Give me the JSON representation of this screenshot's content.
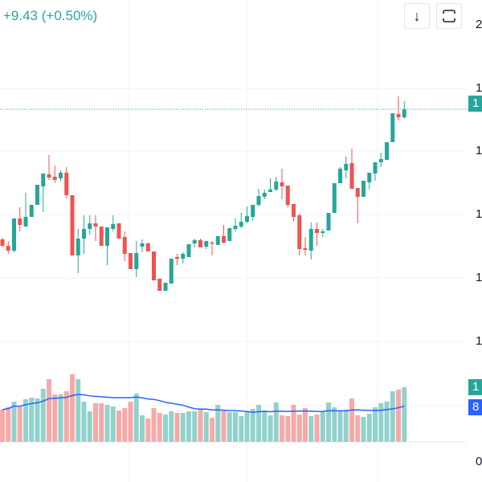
{
  "header": {
    "change_text": "+9.43 (+0.50%)"
  },
  "toolbar": {
    "download_icon": "arrow-down-icon",
    "fullscreen_icon": "fullscreen-icon"
  },
  "price_axis": {
    "labels": [
      "2",
      "1",
      "1",
      "1",
      "1",
      "1"
    ],
    "current_price_tag": "1"
  },
  "volume_axis": {
    "volume_tag": "1",
    "ma_tag": "8"
  },
  "time_axis": {
    "labels": [
      "0"
    ]
  },
  "colors": {
    "up": "#26a69a",
    "down": "#ef5350",
    "up_volume": "#92d2cc",
    "down_volume": "#f7a9a7",
    "ma": "#2962ff",
    "grid": "#f0f3fa"
  },
  "chart_data": {
    "type": "candlestick",
    "ohlc_format": [
      "open",
      "high",
      "low",
      "close"
    ],
    "candles": [
      [
        302,
        304,
        292,
        294
      ],
      [
        294,
        300,
        284,
        288
      ],
      [
        288,
        328,
        286,
        328
      ],
      [
        328,
        342,
        312,
        320
      ],
      [
        318,
        360,
        318,
        330
      ],
      [
        330,
        345,
        330,
        345
      ],
      [
        345,
        370,
        345,
        370
      ],
      [
        368,
        384,
        336,
        384
      ],
      [
        383,
        407,
        376,
        379
      ],
      [
        380,
        394,
        372,
        376
      ],
      [
        378,
        388,
        375,
        385
      ],
      [
        385,
        392,
        353,
        357
      ],
      [
        357,
        357,
        282,
        282
      ],
      [
        282,
        315,
        260,
        303
      ],
      [
        303,
        332,
        284,
        315
      ],
      [
        315,
        332,
        308,
        322
      ],
      [
        322,
        332,
        300,
        318
      ],
      [
        318,
        318,
        294,
        294
      ],
      [
        294,
        317,
        270,
        317
      ],
      [
        315,
        332,
        312,
        321
      ],
      [
        322,
        322,
        303,
        303
      ],
      [
        305,
        312,
        275,
        284
      ],
      [
        285,
        285,
        265,
        265
      ],
      [
        265,
        300,
        255,
        285
      ],
      [
        293,
        302,
        286,
        297
      ],
      [
        297,
        298,
        287,
        287
      ],
      [
        287,
        287,
        251,
        251
      ],
      [
        253,
        253,
        238,
        238
      ],
      [
        238,
        248,
        238,
        248
      ],
      [
        247,
        278,
        247,
        278
      ],
      [
        280,
        284,
        270,
        278
      ],
      [
        278,
        286,
        272,
        284
      ],
      [
        280,
        296,
        280,
        296
      ],
      [
        297,
        303,
        292,
        301
      ],
      [
        301,
        303,
        292,
        292
      ],
      [
        293,
        300,
        290,
        300
      ],
      [
        298,
        300,
        282,
        297
      ],
      [
        295,
        306,
        295,
        306
      ],
      [
        306,
        320,
        297,
        298
      ],
      [
        300,
        316,
        300,
        316
      ],
      [
        315,
        328,
        312,
        319
      ],
      [
        318,
        335,
        316,
        324
      ],
      [
        324,
        343,
        322,
        331
      ],
      [
        330,
        345,
        325,
        345
      ],
      [
        345,
        365,
        343,
        356
      ],
      [
        355,
        364,
        352,
        360
      ],
      [
        361,
        378,
        361,
        364
      ],
      [
        364,
        380,
        362,
        374
      ],
      [
        373,
        390,
        352,
        368
      ],
      [
        369,
        369,
        342,
        345
      ],
      [
        346,
        346,
        325,
        330
      ],
      [
        332,
        334,
        282,
        290
      ],
      [
        291,
        305,
        282,
        289
      ],
      [
        288,
        323,
        277,
        315
      ],
      [
        315,
        323,
        294,
        310
      ],
      [
        310,
        315,
        305,
        312
      ],
      [
        313,
        335,
        313,
        335
      ],
      [
        335,
        372,
        335,
        372
      ],
      [
        372,
        392,
        372,
        390
      ],
      [
        388,
        405,
        378,
        396
      ],
      [
        397,
        415,
        365,
        365
      ],
      [
        366,
        366,
        322,
        355
      ],
      [
        355,
        375,
        355,
        375
      ],
      [
        373,
        385,
        364,
        385
      ],
      [
        384,
        398,
        375,
        398
      ],
      [
        398,
        410,
        392,
        402
      ],
      [
        401,
        423,
        401,
        423
      ],
      [
        423,
        459,
        423,
        459
      ],
      [
        458,
        480,
        450,
        454
      ],
      [
        454,
        474,
        452,
        464
      ]
    ],
    "volumes": [
      40,
      43,
      50,
      45,
      53,
      55,
      54,
      66,
      78,
      59,
      59,
      63,
      84,
      78,
      50,
      38,
      48,
      48,
      46,
      44,
      39,
      42,
      50,
      60,
      33,
      29,
      42,
      36,
      34,
      38,
      36,
      36,
      38,
      38,
      40,
      37,
      30,
      46,
      39,
      37,
      37,
      32,
      37,
      41,
      46,
      39,
      33,
      49,
      33,
      32,
      46,
      34,
      42,
      32,
      34,
      38,
      49,
      43,
      39,
      40,
      54,
      33,
      31,
      35,
      43,
      48,
      50,
      63,
      65,
      68
    ],
    "volume_ma_period": 20,
    "last_price_line": true
  }
}
